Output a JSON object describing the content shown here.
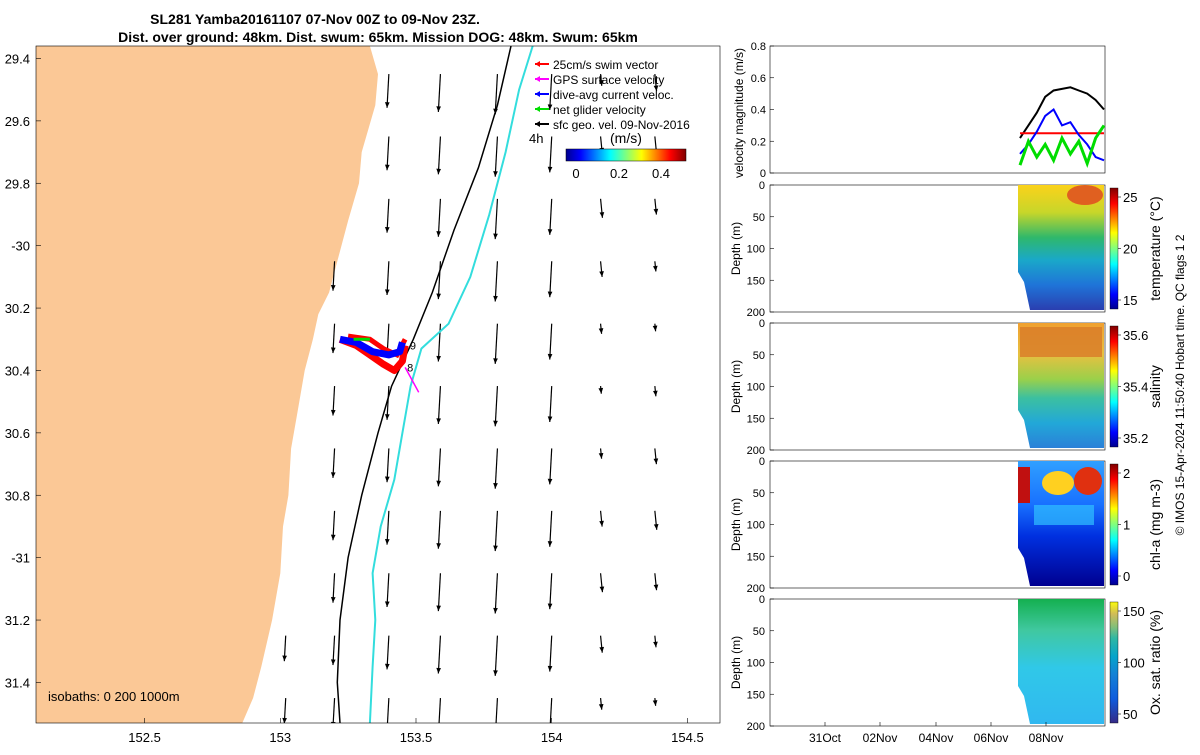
{
  "title": {
    "line1": "SL281 Yamba20161107 07-Nov 00Z to 09-Nov 23Z.",
    "line2": "Dist. over ground: 48km. Dist. swum: 65km. Mission DOG: 48km. Swum: 65km"
  },
  "side_label": "© IMOS 15-Apr-2024 11:50:40 Hobart time. QC flags 1  2",
  "map": {
    "xlim": [
      152.1,
      154.62
    ],
    "ylim": [
      -31.53,
      -29.36
    ],
    "xticks": [
      152.5,
      153,
      153.5,
      154,
      154.5
    ],
    "yticks": [
      -29.4,
      -29.6,
      -29.8,
      -30,
      -30.2,
      -30.4,
      -30.6,
      -30.8,
      -31,
      -31.2,
      -31.4
    ],
    "ytick_labels": [
      "29.4",
      "29.6",
      "29.8",
      "-30",
      "30.2",
      "30.4",
      "30.6",
      "30.8",
      "-31",
      "31.2",
      "31.4"
    ],
    "isobaths_label": "isobaths: 0   200  1000m",
    "land_color": "#fbc896",
    "isobath_200_color": "#000000",
    "isobath_1000_color": "#33dddd",
    "legend": [
      {
        "label": "25cm/s swim vector",
        "color": "#ff0000"
      },
      {
        "label": "GPS surface velocity",
        "color": "#ff00ff"
      },
      {
        "label": "dive-avg current veloc.",
        "color": "#0000ff"
      },
      {
        "label": "net glider velocity",
        "color": "#00dd00"
      },
      {
        "label": "sfc geo. vel. 09-Nov-2016",
        "color": "#000000"
      }
    ],
    "colorbar": {
      "prefix": "4h",
      "label": "(m/s)",
      "ticks": [
        "0",
        "0.2",
        "0.4"
      ]
    },
    "track_labels": [
      "9",
      "8"
    ]
  },
  "chart_data": [
    {
      "type": "line",
      "name": "velocity",
      "ylabel": "velocity magnitude (m/s)",
      "ylim": [
        0,
        0.8
      ],
      "yticks": [
        "0",
        "0.2",
        "0.4",
        "0.6",
        "0.8"
      ],
      "series": [
        {
          "name": "sfc geo. vel.",
          "color": "#000000",
          "values": [
            0.22,
            0.3,
            0.38,
            0.48,
            0.52,
            0.53,
            0.54,
            0.52,
            0.5,
            0.46,
            0.4
          ]
        },
        {
          "name": "25cm/s swim vector",
          "color": "#ff0000",
          "values": [
            0.25,
            0.25,
            0.25,
            0.25,
            0.25,
            0.25,
            0.25,
            0.25,
            0.25,
            0.25,
            0.25
          ]
        },
        {
          "name": "dive-avg current veloc.",
          "color": "#0000ff",
          "values": [
            0.12,
            0.18,
            0.26,
            0.36,
            0.4,
            0.3,
            0.32,
            0.24,
            0.18,
            0.1,
            0.08
          ]
        },
        {
          "name": "net glider velocity",
          "color": "#00dd00",
          "values": [
            0.05,
            0.2,
            0.1,
            0.18,
            0.08,
            0.22,
            0.12,
            0.2,
            0.06,
            0.22,
            0.3
          ]
        }
      ]
    },
    {
      "type": "heatmap",
      "name": "temperature",
      "ylabel": "Depth (m)",
      "cbar_label": "temperature (°C)",
      "cbar_ticks": [
        "25",
        "20",
        "15"
      ],
      "ylim": [
        0,
        200
      ],
      "yticks": [
        "0",
        "50",
        "100",
        "150",
        "200"
      ]
    },
    {
      "type": "heatmap",
      "name": "salinity",
      "ylabel": "Depth (m)",
      "cbar_label": "salinity",
      "cbar_ticks": [
        "35.6",
        "35.4",
        "35.2"
      ],
      "ylim": [
        0,
        200
      ],
      "yticks": [
        "0",
        "50",
        "100",
        "150",
        "200"
      ]
    },
    {
      "type": "heatmap",
      "name": "chl-a",
      "ylabel": "Depth (m)",
      "cbar_label": "chl-a (mg m-3)",
      "cbar_ticks": [
        "2",
        "1",
        "0"
      ],
      "ylim": [
        0,
        200
      ],
      "yticks": [
        "0",
        "50",
        "100",
        "150",
        "200"
      ]
    },
    {
      "type": "heatmap",
      "name": "oxygen",
      "ylabel": "Depth (m)",
      "cbar_label": "Ox. sat. ratio (%)",
      "cbar_ticks": [
        "150",
        "100",
        "50"
      ],
      "ylim": [
        0,
        200
      ],
      "yticks": [
        "0",
        "50",
        "100",
        "150",
        "200"
      ]
    }
  ],
  "time_axis": [
    "31Oct",
    "02Nov",
    "04Nov",
    "06Nov",
    "08Nov"
  ]
}
